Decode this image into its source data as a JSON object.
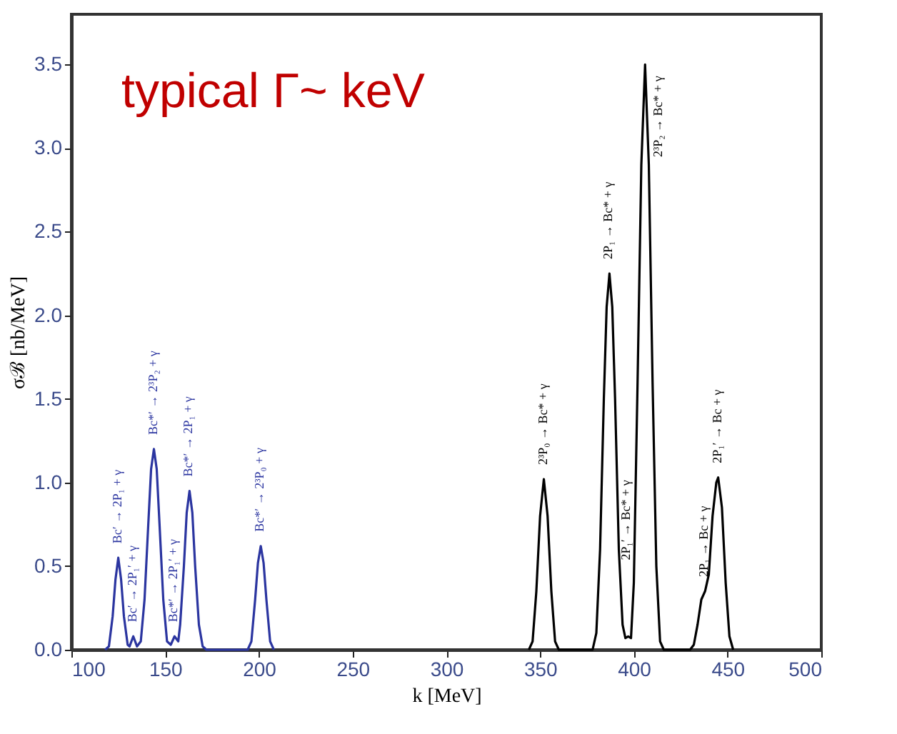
{
  "chart_data": {
    "type": "line",
    "title": "typical Γ~ keV",
    "xlabel": "k [MeV]",
    "ylabel": "σℬ [nb/MeV]",
    "xlim": [
      100,
      500
    ],
    "xticks": [
      100,
      150,
      200,
      250,
      300,
      350,
      400,
      450,
      500
    ],
    "ylim": [
      0,
      3.8
    ],
    "yticks": [
      {
        "value": 0,
        "label": "0.0"
      },
      0.5,
      {
        "value": 1,
        "label": "1.0"
      },
      1.5,
      {
        "value": 2,
        "label": "2.0"
      },
      2.5,
      {
        "value": 3,
        "label": "3.0"
      },
      3.5
    ],
    "marker": "none",
    "line_style": "solid",
    "series": [
      {
        "color": "#2b35a0",
        "x": [
          118,
          120,
          122,
          123.5,
          125,
          126.5,
          128,
          130,
          131,
          133,
          135,
          137,
          139,
          141,
          142.5,
          144,
          145.5,
          147,
          149,
          151,
          153,
          155,
          157,
          158,
          160,
          161.5,
          163,
          164.5,
          166,
          168,
          170,
          172,
          194,
          196,
          198,
          199.5,
          201,
          202.5,
          204,
          206,
          208
        ],
        "values": [
          0,
          0.02,
          0.2,
          0.42,
          0.55,
          0.42,
          0.2,
          0.03,
          0.02,
          0.08,
          0.02,
          0.05,
          0.3,
          0.75,
          1.08,
          1.2,
          1.08,
          0.75,
          0.3,
          0.05,
          0.03,
          0.08,
          0.05,
          0.15,
          0.5,
          0.82,
          0.95,
          0.82,
          0.5,
          0.15,
          0.02,
          0,
          0,
          0.05,
          0.3,
          0.52,
          0.62,
          0.52,
          0.3,
          0.05,
          0
        ]
      },
      {
        "color": "#000000",
        "x": [
          344,
          346,
          348,
          350,
          352,
          354,
          356,
          358,
          360,
          378,
          380,
          382,
          384,
          385.5,
          387,
          388.5,
          390,
          392,
          394,
          395.5,
          397,
          398.5,
          400,
          402,
          404,
          406,
          408,
          410,
          412,
          414,
          416,
          430,
          432,
          434,
          436,
          438,
          440,
          442,
          444,
          445,
          447,
          449,
          451,
          453
        ],
        "values": [
          0,
          0.05,
          0.35,
          0.8,
          1.02,
          0.8,
          0.35,
          0.05,
          0,
          0,
          0.1,
          0.6,
          1.5,
          2.05,
          2.25,
          2.05,
          1.5,
          0.6,
          0.15,
          0.07,
          0.08,
          0.07,
          0.4,
          1.6,
          2.9,
          3.5,
          2.9,
          1.6,
          0.5,
          0.05,
          0,
          0,
          0.03,
          0.15,
          0.3,
          0.35,
          0.45,
          0.8,
          1.0,
          1.03,
          0.85,
          0.4,
          0.08,
          0
        ]
      }
    ],
    "annotations": [
      {
        "text": "Bc′ → 2P₁ + γ",
        "x": 125,
        "y": 0.55
      },
      {
        "text": "Bc′ → 2P₁′ + γ",
        "x": 133,
        "y": 0.08
      },
      {
        "text": "Bc*′ → 2³P₂ + γ",
        "x": 144,
        "y": 1.2
      },
      {
        "text": "Bc*′ → 2P₁′ + γ",
        "x": 155,
        "y": 0.08
      },
      {
        "text": "Bc*′ → 2P₁ + γ",
        "x": 163,
        "y": 0.95
      },
      {
        "text": "Bc*′ → 2³P₀ + γ",
        "x": 201,
        "y": 0.62
      },
      {
        "text": "2³P₀ → Bc* + γ",
        "x": 352,
        "y": 1.02
      },
      {
        "text": "2P₁ → Bc* + γ",
        "x": 387,
        "y": 2.25
      },
      {
        "text": "2P₁′ → Bc* + γ",
        "x": 396.2,
        "y": 0.45
      },
      {
        "text": "2³P₂ → Bc* + γ",
        "x": 406,
        "y": 3.5
      },
      {
        "text": "2P₁ → Bc + γ",
        "x": 438,
        "y": 0.35
      },
      {
        "text": "2P₁′ → Bc + γ",
        "x": 445,
        "y": 1.03
      }
    ]
  }
}
